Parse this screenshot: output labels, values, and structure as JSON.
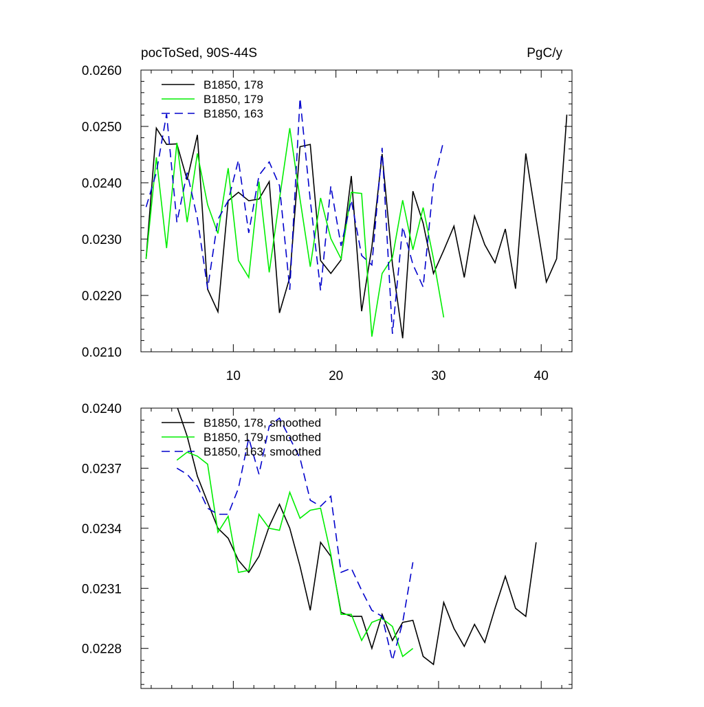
{
  "chart_data": [
    {
      "type": "line",
      "title": "pocToSed, 90S-44S",
      "units": "PgC/y",
      "xlabel": "",
      "ylabel": "",
      "xlim": [
        1,
        43
      ],
      "ylim": [
        0.021,
        0.026
      ],
      "x_ticks": [
        10,
        20,
        30,
        40
      ],
      "x_tick_labels": [
        "10",
        "20",
        "30",
        "40"
      ],
      "y_ticks": [
        0.021,
        0.022,
        0.023,
        0.024,
        0.025,
        0.026
      ],
      "y_tick_labels": [
        "0.0210",
        "0.0220",
        "0.0230",
        "0.0240",
        "0.0250",
        "0.0260"
      ],
      "grid": false,
      "legend": "top-left",
      "series": [
        {
          "name": "B1850, 178",
          "color": "#000000",
          "dash": "solid",
          "x": [
            1.5,
            2.5,
            3.5,
            4.5,
            5.5,
            6.5,
            7.5,
            8.5,
            9.5,
            10.5,
            11.5,
            12.5,
            13.5,
            14.5,
            15.5,
            16.5,
            17.5,
            18.5,
            19.5,
            20.5,
            21.5,
            22.5,
            23.5,
            24.5,
            25.5,
            26.5,
            27.5,
            28.5,
            29.5,
            30.5,
            31.5,
            32.5,
            33.5,
            34.5,
            35.5,
            36.5,
            37.5,
            38.5,
            39.5,
            40.5,
            41.5,
            42.5
          ],
          "values": [
            0.02265,
            0.02497,
            0.02468,
            0.02469,
            0.02405,
            0.02485,
            0.02211,
            0.02171,
            0.02368,
            0.02383,
            0.02368,
            0.02371,
            0.02402,
            0.02169,
            0.02232,
            0.02464,
            0.02468,
            0.02262,
            0.02239,
            0.02263,
            0.02412,
            0.02172,
            0.02286,
            0.02451,
            0.02256,
            0.02124,
            0.02385,
            0.02328,
            0.02239,
            0.0228,
            0.02323,
            0.02232,
            0.02341,
            0.0229,
            0.02258,
            0.02318,
            0.02212,
            0.02452,
            0.02336,
            0.02224,
            0.02265,
            0.02521
          ]
        },
        {
          "name": "B1850, 179",
          "color": "#00ee00",
          "dash": "solid",
          "x": [
            1.5,
            2.5,
            3.5,
            4.5,
            5.5,
            6.5,
            7.5,
            8.5,
            9.5,
            10.5,
            11.5,
            12.5,
            13.5,
            14.5,
            15.5,
            16.5,
            17.5,
            18.5,
            19.5,
            20.5,
            21.5,
            22.5,
            23.5,
            24.5,
            25.5,
            26.5,
            27.5,
            28.5,
            29.5,
            30.5
          ],
          "values": [
            0.02265,
            0.02445,
            0.02284,
            0.02471,
            0.0233,
            0.02452,
            0.02361,
            0.0231,
            0.02426,
            0.02262,
            0.02232,
            0.02402,
            0.02241,
            0.02371,
            0.02497,
            0.02371,
            0.02251,
            0.02373,
            0.02301,
            0.02265,
            0.02383,
            0.02381,
            0.02127,
            0.02239,
            0.02267,
            0.02369,
            0.02281,
            0.02356,
            0.02265,
            0.02161
          ]
        },
        {
          "name": "B1850, 163",
          "color": "#0000cc",
          "dash": "dashed",
          "x": [
            1.5,
            2.5,
            3.5,
            4.5,
            5.5,
            6.5,
            7.5,
            8.5,
            9.5,
            10.5,
            11.5,
            12.5,
            13.5,
            14.5,
            15.5,
            16.5,
            17.5,
            18.5,
            19.5,
            20.5,
            21.5,
            22.5,
            23.5,
            24.5,
            25.5,
            26.5,
            27.5,
            28.5,
            29.5,
            30.5
          ],
          "values": [
            0.02357,
            0.02418,
            0.02522,
            0.0233,
            0.02418,
            0.02337,
            0.02212,
            0.02335,
            0.02368,
            0.0244,
            0.02311,
            0.02413,
            0.02437,
            0.02395,
            0.0221,
            0.0255,
            0.02369,
            0.02209,
            0.02394,
            0.02288,
            0.02369,
            0.02271,
            0.02254,
            0.02462,
            0.02132,
            0.02322,
            0.02255,
            0.02215,
            0.02399,
            0.02475
          ]
        }
      ]
    },
    {
      "type": "line",
      "title": "",
      "xlabel": "",
      "ylabel": "",
      "xlim": [
        1,
        43
      ],
      "ylim": [
        0.0226,
        0.024
      ],
      "x_ticks": [
        10,
        20,
        30,
        40
      ],
      "x_tick_labels": [
        "",
        "",
        "",
        ""
      ],
      "y_ticks": [
        0.0228,
        0.0231,
        0.0234,
        0.0237,
        0.024
      ],
      "y_tick_labels": [
        "0.0228",
        "0.0231",
        "0.0234",
        "0.0237",
        "0.0240"
      ],
      "grid": false,
      "legend": "top-left",
      "series": [
        {
          "name": "B1850, 178, smoothed",
          "color": "#000000",
          "dash": "solid",
          "x": [
            4.5,
            5.5,
            6.5,
            7.5,
            8.5,
            9.5,
            10.5,
            11.5,
            12.5,
            13.5,
            14.5,
            15.5,
            16.5,
            17.5,
            18.5,
            19.5,
            20.5,
            21.5,
            22.5,
            23.5,
            24.5,
            25.5,
            26.5,
            27.5,
            28.5,
            29.5,
            30.5,
            31.5,
            32.5,
            33.5,
            34.5,
            35.5,
            36.5,
            37.5,
            38.5,
            39.5
          ],
          "values": [
            0.02401,
            0.02386,
            0.02366,
            0.02353,
            0.0234,
            0.02335,
            0.02324,
            0.02318,
            0.02326,
            0.02341,
            0.02352,
            0.0234,
            0.02321,
            0.02299,
            0.02333,
            0.02326,
            0.02298,
            0.02296,
            0.02296,
            0.0228,
            0.02297,
            0.02284,
            0.02293,
            0.02294,
            0.02276,
            0.02272,
            0.02303,
            0.0229,
            0.02281,
            0.02292,
            0.02283,
            0.023,
            0.02316,
            0.023,
            0.02296,
            0.02333
          ]
        },
        {
          "name": "B1850, 179, smoothed",
          "color": "#00ee00",
          "dash": "solid",
          "x": [
            4.5,
            5.5,
            6.5,
            7.5,
            8.5,
            9.5,
            10.5,
            11.5,
            12.5,
            13.5,
            14.5,
            15.5,
            16.5,
            17.5,
            18.5,
            19.5,
            20.5,
            21.5,
            22.5,
            23.5,
            24.5,
            25.5,
            26.5,
            27.5
          ],
          "values": [
            0.02374,
            0.02378,
            0.02376,
            0.02372,
            0.02338,
            0.02346,
            0.02318,
            0.02319,
            0.02347,
            0.0234,
            0.02339,
            0.02358,
            0.02345,
            0.02349,
            0.0235,
            0.02327,
            0.02297,
            0.02297,
            0.02284,
            0.02293,
            0.02295,
            0.02291,
            0.02276,
            0.0228
          ]
        },
        {
          "name": "B1850, 163, smoothed",
          "color": "#0000cc",
          "dash": "dashed",
          "x": [
            4.5,
            5.5,
            6.5,
            7.5,
            8.5,
            9.5,
            10.5,
            11.5,
            12.5,
            13.5,
            14.5,
            15.5,
            16.5,
            17.5,
            18.5,
            19.5,
            20.5,
            21.5,
            22.5,
            23.5,
            24.5,
            25.5,
            26.5,
            27.5
          ],
          "values": [
            0.0237,
            0.02367,
            0.02361,
            0.0235,
            0.02347,
            0.02347,
            0.0236,
            0.02385,
            0.02367,
            0.02391,
            0.02395,
            0.02385,
            0.02375,
            0.02354,
            0.02351,
            0.02356,
            0.02318,
            0.0232,
            0.02309,
            0.02299,
            0.02296,
            0.02274,
            0.02293,
            0.02323
          ]
        }
      ]
    }
  ]
}
